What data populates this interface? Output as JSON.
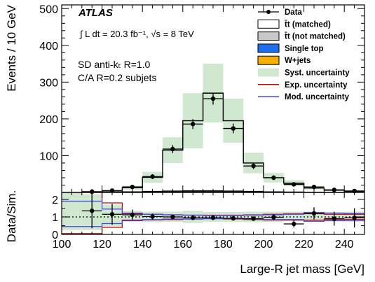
{
  "chart_data": [
    {
      "type": "bar",
      "panel": "main",
      "xlabel": "",
      "ylabel": "Events / 10 GeV",
      "xlim": [
        100,
        250
      ],
      "ylim": [
        0,
        510
      ],
      "yticks": [
        100,
        200,
        300,
        400,
        500
      ],
      "annotations": {
        "experiment": "ATLAS",
        "lumi": "∫ L dt = 20.3 fb⁻¹, √s = 8 TeV",
        "jet_algo": "SD anti-kₜ R=1.0",
        "subjets": "C/A R=0.2 subjets"
      },
      "bin_edges": [
        100,
        110,
        120,
        130,
        140,
        150,
        160,
        170,
        180,
        190,
        200,
        210,
        220,
        230,
        240,
        250
      ],
      "series": [
        {
          "name": "Data",
          "style": "points",
          "color": "#000000",
          "values": [
            0,
            2,
            5,
            15,
            43,
            118,
            186,
            255,
            174,
            72,
            40,
            22,
            15,
            7,
            4
          ],
          "errors": [
            1,
            1.5,
            2.3,
            3.9,
            6.6,
            10.9,
            13.6,
            16,
            13.2,
            8.5,
            6.3,
            4.7,
            3.9,
            2.6,
            2
          ]
        },
        {
          "name": "t̄t (matched)",
          "style": "outline",
          "color": "#000000",
          "values": [
            0,
            1,
            4,
            13,
            41,
            115,
            195,
            270,
            195,
            80,
            40,
            25,
            12,
            6,
            3
          ]
        },
        {
          "name": "t̄t (not matched)",
          "style": "fill",
          "color": "#c8c8c8",
          "values": [
            0,
            0.5,
            1,
            2,
            3,
            4,
            5,
            5,
            4,
            3,
            2,
            1.5,
            1,
            0.5,
            0.3
          ]
        },
        {
          "name": "Single top",
          "style": "fill",
          "color": "#1e6ff0",
          "values": [
            0,
            0.3,
            0.5,
            1,
            1.5,
            2,
            2.5,
            2.5,
            2,
            1.5,
            1,
            0.7,
            0.5,
            0.3,
            0.2
          ]
        },
        {
          "name": "W+jets",
          "style": "fill",
          "color": "#f5b000",
          "values": [
            0,
            0.2,
            0.3,
            0.5,
            0.8,
            1,
            1.2,
            1.2,
            1,
            0.8,
            0.6,
            0.4,
            0.3,
            0.2,
            0.1
          ]
        },
        {
          "name": "Syst. uncertainty",
          "style": "band",
          "color": "#cfe8cf",
          "values": [
            0,
            1,
            4,
            13,
            41,
            115,
            195,
            270,
            195,
            80,
            40,
            25,
            12,
            6,
            3
          ],
          "errors": [
            0,
            0.6,
            2,
            5.5,
            15,
            35,
            75,
            80,
            60,
            28,
            13,
            8,
            4,
            2,
            1
          ]
        },
        {
          "name": "Exp. uncertainty",
          "style": "line",
          "color": "#cc0000",
          "values": []
        },
        {
          "name": "Mod. uncertainty",
          "style": "line",
          "color": "#4444ee",
          "values": []
        }
      ]
    },
    {
      "type": "line",
      "panel": "ratio",
      "xlabel": "Large-R jet mass [GeV]",
      "ylabel": "Data/Sim.",
      "xlim": [
        100,
        250
      ],
      "ylim": [
        0,
        2.4
      ],
      "yticks": [
        0,
        1,
        2
      ],
      "xticks": [
        100,
        120,
        140,
        160,
        180,
        200,
        220,
        240
      ],
      "bin_edges": [
        100,
        110,
        120,
        130,
        140,
        150,
        160,
        170,
        180,
        190,
        200,
        210,
        220,
        230,
        240,
        250
      ],
      "reference_line": 1,
      "syst_band": {
        "low": [
          0.25,
          0.25,
          0.45,
          0.75,
          0.7,
          0.72,
          0.65,
          0.72,
          0.72,
          0.7,
          0.72,
          0.75,
          0.75,
          0.75,
          0.72
        ],
        "high": [
          2.5,
          2.3,
          1.7,
          1.35,
          1.3,
          1.3,
          1.35,
          1.28,
          1.28,
          1.3,
          1.3,
          1.3,
          1.3,
          1.28,
          1.3
        ]
      },
      "exp_band": {
        "low": [
          0.05,
          0.05,
          0.4,
          0.82,
          0.83,
          0.85,
          0.88,
          0.9,
          0.88,
          0.85,
          0.82,
          0.82,
          0.82,
          0.85,
          0.85
        ],
        "high": [
          2.5,
          2.5,
          1.8,
          1.18,
          1.15,
          1.12,
          1.1,
          1.1,
          1.1,
          1.12,
          1.15,
          1.18,
          1.18,
          1.15,
          1.15
        ]
      },
      "mod_band": {
        "low": [
          0.45,
          0.45,
          0.62,
          0.78,
          0.85,
          0.88,
          0.88,
          0.9,
          0.9,
          0.88,
          0.85,
          0.85,
          0.75,
          0.78,
          0.8
        ],
        "high": [
          1.9,
          1.9,
          1.45,
          1.22,
          1.15,
          1.12,
          1.1,
          1.08,
          1.08,
          1.1,
          1.12,
          1.15,
          1.25,
          1.22,
          1.2
        ]
      },
      "series": [
        {
          "name": "Data",
          "style": "points",
          "values": [
            null,
            1.35,
            1.15,
            1.12,
            1.02,
            1.0,
            0.95,
            0.95,
            0.92,
            0.9,
            0.98,
            0.6,
            1.2,
            0.9,
            0.95
          ],
          "errors": [
            null,
            1.0,
            0.6,
            0.3,
            0.17,
            0.1,
            0.07,
            0.06,
            0.07,
            0.12,
            0.17,
            0.2,
            0.35,
            0.4,
            0.55
          ]
        }
      ]
    }
  ]
}
